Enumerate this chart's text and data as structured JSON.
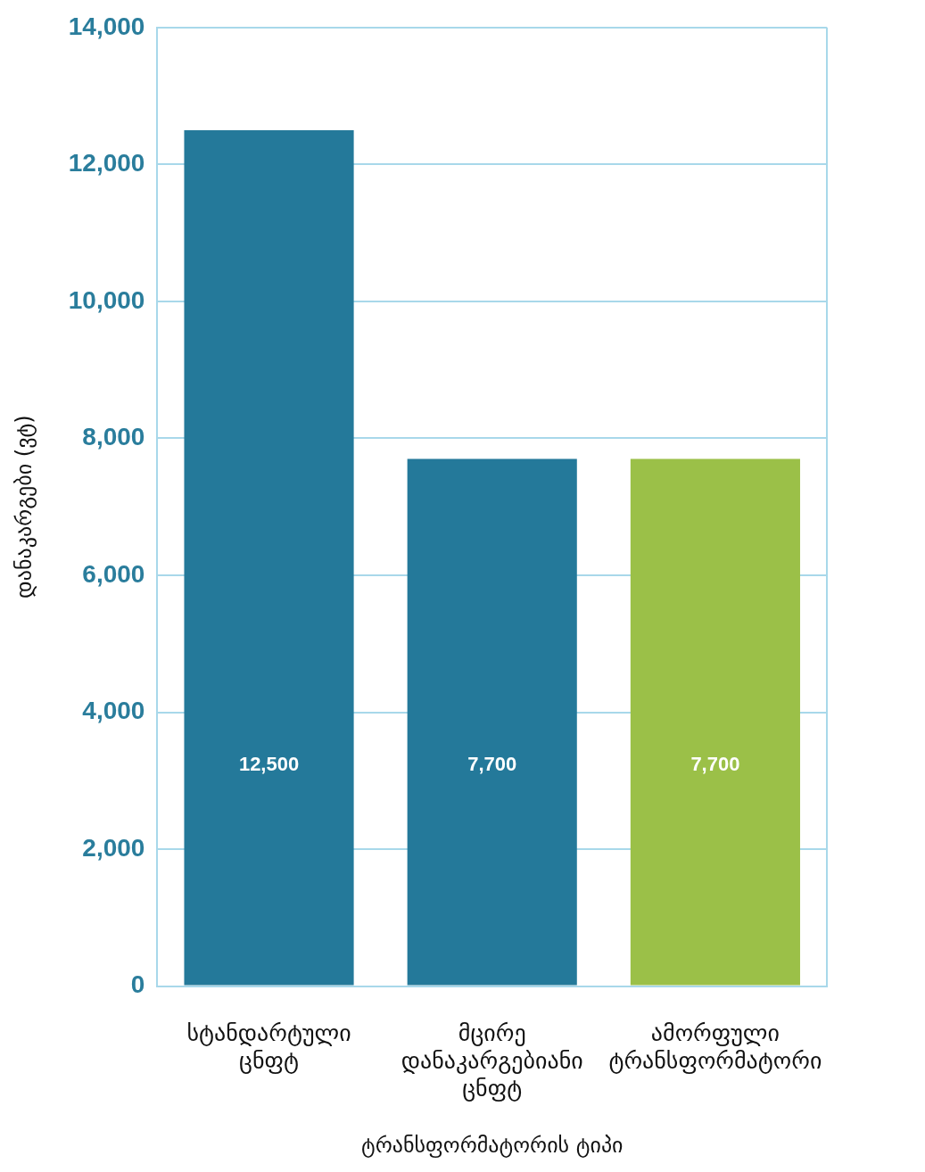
{
  "chart_data": {
    "type": "bar",
    "xlabel": "ტრანსფორმატორის ტიპი",
    "ylabel": "დანაკარგები (ვტ)",
    "categories": [
      "სტანდარტული ცნფტ",
      "მცირე დანაკარგებიანი ცნფტ",
      "ამორფული ტრანსფორმატორი"
    ],
    "values": [
      12500,
      7700,
      7700
    ],
    "value_labels": [
      "12,500",
      "7,700",
      "7,700"
    ],
    "colors": [
      "#24799a",
      "#24799a",
      "#9bc048"
    ],
    "ylim": [
      0,
      14000
    ],
    "yticks": [
      0,
      {
        "value": 2000,
        "label": "2,000"
      },
      {
        "value": 4000,
        "label": "4,000"
      },
      {
        "value": 6000,
        "label": "6,000"
      },
      {
        "value": 8000,
        "label": "8,000"
      },
      {
        "value": 10000,
        "label": "10,000"
      },
      {
        "value": 12000,
        "label": "12,000"
      },
      {
        "value": 14000,
        "label": "14,000"
      }
    ],
    "grid": "y",
    "legend": false
  }
}
